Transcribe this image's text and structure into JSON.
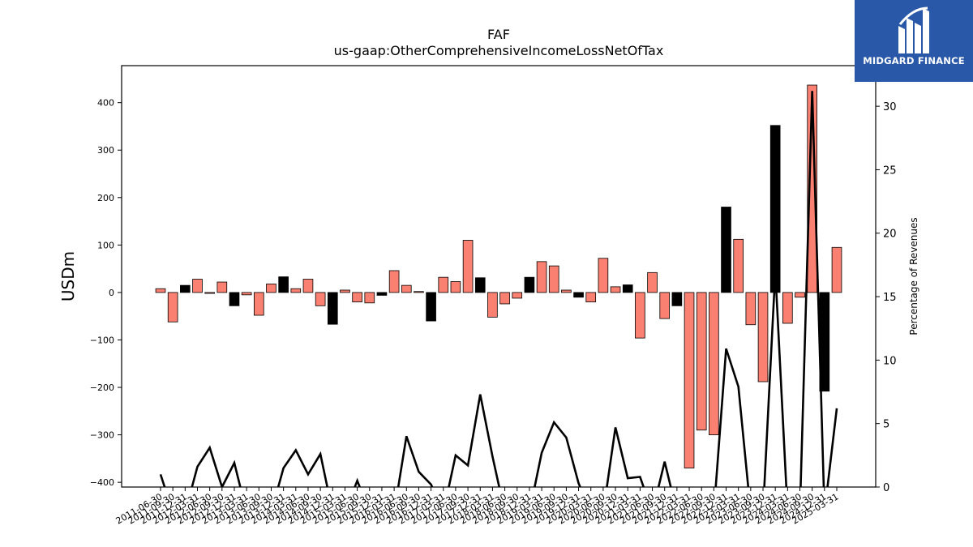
{
  "chart_data": {
    "type": "bar",
    "title": "FAF",
    "subtitle": "us-gaap:OtherComprehensiveIncomeLossNetOfTax",
    "ylabel": "USDm",
    "y2label": "Percentage of Revenues",
    "ylim": [
      -410,
      478
    ],
    "y2lim": [
      0,
      33.2
    ],
    "yticks": [
      -400,
      -300,
      -200,
      -100,
      0,
      100,
      200,
      300,
      400
    ],
    "y2ticks": [
      0,
      5,
      10,
      15,
      20,
      25,
      30
    ],
    "ytick_labels": [
      "−400",
      "−300",
      "−200",
      "−100",
      "0",
      "100",
      "200",
      "300",
      "400"
    ],
    "y2tick_labels": [
      "0",
      "5",
      "10",
      "15",
      "20",
      "25",
      "30"
    ],
    "categories": [
      "2011-06-30",
      "2011-09-30",
      "2011-12-31",
      "2012-03-31",
      "2012-06-30",
      "2012-09-30",
      "2012-12-31",
      "2013-03-31",
      "2013-06-30",
      "2013-09-30",
      "2013-12-31",
      "2014-03-31",
      "2014-06-30",
      "2014-09-30",
      "2014-12-31",
      "2015-03-31",
      "2015-06-30",
      "2015-09-30",
      "2015-12-31",
      "2016-03-31",
      "2016-06-30",
      "2016-09-30",
      "2016-12-31",
      "2017-03-31",
      "2017-06-30",
      "2017-09-30",
      "2017-12-31",
      "2018-03-31",
      "2018-06-30",
      "2018-09-30",
      "2018-12-31",
      "2019-03-31",
      "2019-06-30",
      "2019-09-30",
      "2019-12-31",
      "2020-03-31",
      "2020-06-30",
      "2020-09-30",
      "2020-12-31",
      "2021-03-31",
      "2021-06-30",
      "2021-09-30",
      "2021-12-31",
      "2022-03-31",
      "2022-06-30",
      "2022-09-30",
      "2022-12-31",
      "2023-03-31",
      "2023-06-30",
      "2023-09-30",
      "2023-12-31",
      "2024-03-31",
      "2024-06-30",
      "2024-09-30",
      "2024-12-31",
      "2025-03-31"
    ],
    "x_tick_labels": [
      "2011-06-30",
      "2011-09-30",
      "2011-12-31",
      "2012-03-31",
      "2012-06-30",
      "2012-09-30",
      "2012-12-31",
      "2013-03-31",
      "2013-06-30",
      "2013-09-30",
      "2013-12-31",
      "2014-03-31",
      "2014-06-30",
      "2014-09-30",
      "2014-12-31",
      "2015-03-31",
      "2015-06-30",
      "2015-09-30",
      "2015-12-31",
      "2016-03-31",
      "2016-06-30",
      "2016-09-30",
      "2016-12-31",
      "2017-03-31",
      "2017-06-30",
      "2017-09-30",
      "2017-12-31",
      "2018-03-31",
      "2018-06-30",
      "2018-09-30",
      "2018-12-31",
      "2019-03-31",
      "2019-06-30",
      "2019-09-30",
      "2019-12-31",
      "2020-03-31",
      "2020-06-30",
      "2020-09-30",
      "2020-12-31",
      "2021-03-31",
      "2021-06-30",
      "2021-09-30",
      "2021-12-31",
      "2022-03-31",
      "2022-06-30",
      "2022-09-30",
      "2022-12-31",
      "2023-03-31",
      "2023-06-30",
      "2023-09-30",
      "2023-12-31",
      "2024-03-31",
      "2024-06-30",
      "2024-09-30",
      "2024-12-31",
      "2025-03-31"
    ],
    "values": [
      8,
      -62,
      15,
      28,
      -2,
      22,
      -28,
      -5,
      -48,
      18,
      33,
      8,
      28,
      -28,
      -67,
      5,
      -20,
      -22,
      -6,
      46,
      15,
      2,
      -60,
      32,
      23,
      110,
      31,
      -52,
      -24,
      -12,
      32,
      65,
      56,
      5,
      -10,
      -20,
      72,
      12,
      16,
      -96,
      42,
      -55,
      -28,
      -370,
      -290,
      -300,
      180,
      112,
      -68,
      -188,
      352,
      -65,
      -10,
      437,
      -208,
      95
    ],
    "bar_colors": [
      "#fa8072",
      "#fa8072",
      "#000000",
      "#fa8072",
      "#fa8072",
      "#fa8072",
      "#000000",
      "#fa8072",
      "#fa8072",
      "#fa8072",
      "#000000",
      "#fa8072",
      "#fa8072",
      "#fa8072",
      "#000000",
      "#fa8072",
      "#fa8072",
      "#fa8072",
      "#000000",
      "#fa8072",
      "#fa8072",
      "#fa8072",
      "#000000",
      "#fa8072",
      "#fa8072",
      "#fa8072",
      "#000000",
      "#fa8072",
      "#fa8072",
      "#fa8072",
      "#000000",
      "#fa8072",
      "#fa8072",
      "#fa8072",
      "#000000",
      "#fa8072",
      "#fa8072",
      "#fa8072",
      "#000000",
      "#fa8072",
      "#fa8072",
      "#fa8072",
      "#000000",
      "#fa8072",
      "#fa8072",
      "#fa8072",
      "#000000",
      "#fa8072",
      "#fa8072",
      "#fa8072",
      "#000000",
      "#fa8072",
      "#fa8072",
      "#fa8072",
      "#000000",
      "#fa8072"
    ],
    "line_series": {
      "values": [
        1.0,
        -2,
        -2,
        1.6,
        3.1,
        0,
        1.9,
        -2,
        -2,
        -2,
        1.5,
        2.9,
        1.0,
        2.6,
        -2,
        -2,
        0.5,
        -2,
        -2,
        -2,
        4.0,
        1.2,
        0.2,
        -2,
        2.5,
        1.7,
        7.3,
        2.4,
        -2,
        -2,
        -2,
        2.7,
        5.1,
        3.9,
        0.3,
        -2,
        -2,
        4.7,
        0.7,
        0.8,
        -2,
        2.0,
        -2,
        -2,
        -2,
        -2,
        10.9,
        7.9,
        -2,
        -2,
        17.0,
        -2,
        -2,
        31.2,
        -2,
        6.2
      ]
    },
    "grid": false,
    "legend": "none",
    "accent_colors": {
      "positive_bar": "#fa8072",
      "highlight_bar": "#000000",
      "line": "#000000"
    }
  },
  "brand": {
    "name": "MIDGARD FINANCE",
    "bg_color": "#2a58a8",
    "icon": "midgard-logo-icon"
  }
}
